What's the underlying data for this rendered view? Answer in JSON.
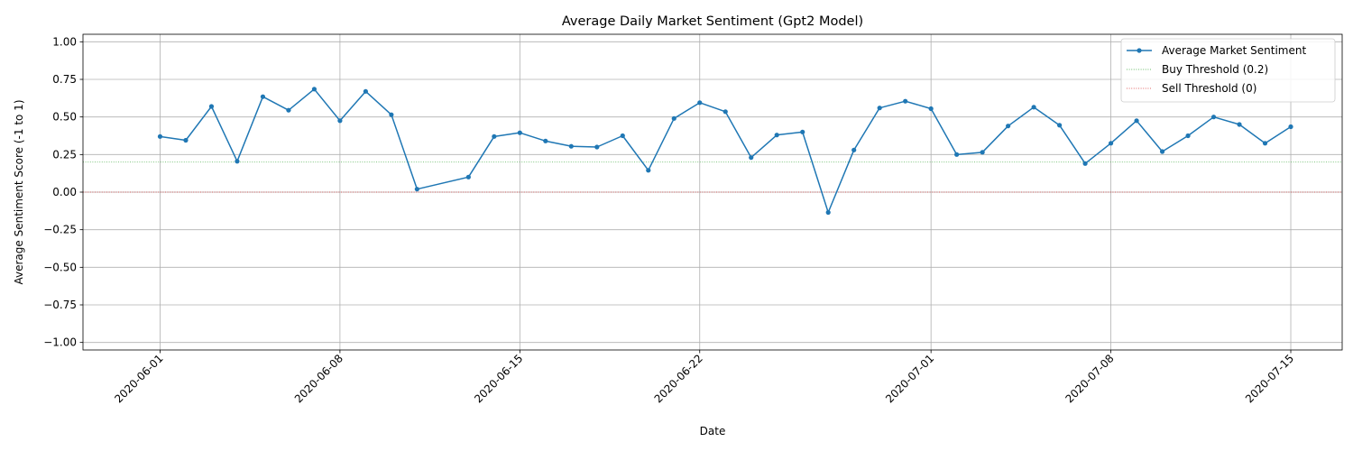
{
  "chart_data": {
    "type": "line",
    "title": "Average Daily Market Sentiment (Gpt2 Model)",
    "xlabel": "Date",
    "ylabel": "Average Sentiment Score (-1 to 1)",
    "ylim": [
      -1.05,
      1.05
    ],
    "xlim": [
      "2020-05-29",
      "2020-07-17"
    ],
    "yticks": [
      -1.0,
      -0.75,
      -0.5,
      -0.25,
      0.0,
      0.25,
      0.5,
      0.75,
      1.0
    ],
    "ytick_labels": [
      "−1.00",
      "−0.75",
      "−0.50",
      "−0.25",
      "0.00",
      "0.25",
      "0.50",
      "0.75",
      "1.00"
    ],
    "xticks": [
      "2020-06-01",
      "2020-06-08",
      "2020-06-15",
      "2020-06-22",
      "2020-07-01",
      "2020-07-08",
      "2020-07-15"
    ],
    "grid": true,
    "legend_position": "top-right",
    "series": [
      {
        "name": "Average Market Sentiment",
        "color": "#1f77b4",
        "style": "line-with-markers",
        "points": [
          {
            "x": "2020-06-01",
            "y": 0.37
          },
          {
            "x": "2020-06-02",
            "y": 0.345
          },
          {
            "x": "2020-06-03",
            "y": 0.57
          },
          {
            "x": "2020-06-04",
            "y": 0.205
          },
          {
            "x": "2020-06-05",
            "y": 0.635
          },
          {
            "x": "2020-06-06",
            "y": 0.545
          },
          {
            "x": "2020-06-07",
            "y": 0.685
          },
          {
            "x": "2020-06-08",
            "y": 0.475
          },
          {
            "x": "2020-06-09",
            "y": 0.67
          },
          {
            "x": "2020-06-10",
            "y": 0.515
          },
          {
            "x": "2020-06-11",
            "y": 0.02
          },
          {
            "x": "2020-06-13",
            "y": 0.1
          },
          {
            "x": "2020-06-14",
            "y": 0.37
          },
          {
            "x": "2020-06-15",
            "y": 0.395
          },
          {
            "x": "2020-06-16",
            "y": 0.34
          },
          {
            "x": "2020-06-17",
            "y": 0.305
          },
          {
            "x": "2020-06-18",
            "y": 0.3
          },
          {
            "x": "2020-06-19",
            "y": 0.375
          },
          {
            "x": "2020-06-20",
            "y": 0.145
          },
          {
            "x": "2020-06-21",
            "y": 0.49
          },
          {
            "x": "2020-06-22",
            "y": 0.595
          },
          {
            "x": "2020-06-23",
            "y": 0.535
          },
          {
            "x": "2020-06-24",
            "y": 0.23
          },
          {
            "x": "2020-06-25",
            "y": 0.38
          },
          {
            "x": "2020-06-26",
            "y": 0.4
          },
          {
            "x": "2020-06-27",
            "y": -0.135
          },
          {
            "x": "2020-06-28",
            "y": 0.28
          },
          {
            "x": "2020-06-29",
            "y": 0.56
          },
          {
            "x": "2020-06-30",
            "y": 0.605
          },
          {
            "x": "2020-07-01",
            "y": 0.555
          },
          {
            "x": "2020-07-02",
            "y": 0.25
          },
          {
            "x": "2020-07-03",
            "y": 0.265
          },
          {
            "x": "2020-07-04",
            "y": 0.44
          },
          {
            "x": "2020-07-05",
            "y": 0.565
          },
          {
            "x": "2020-07-06",
            "y": 0.445
          },
          {
            "x": "2020-07-07",
            "y": 0.19
          },
          {
            "x": "2020-07-08",
            "y": 0.325
          },
          {
            "x": "2020-07-09",
            "y": 0.475
          },
          {
            "x": "2020-07-10",
            "y": 0.27
          },
          {
            "x": "2020-07-11",
            "y": 0.375
          },
          {
            "x": "2020-07-12",
            "y": 0.5
          },
          {
            "x": "2020-07-13",
            "y": 0.45
          },
          {
            "x": "2020-07-14",
            "y": 0.325
          },
          {
            "x": "2020-07-15",
            "y": 0.435
          }
        ]
      }
    ],
    "thresholds": [
      {
        "name": "Buy Threshold (0.2)",
        "y": 0.2,
        "color": "#2ca02c",
        "style": "dotted"
      },
      {
        "name": "Sell Threshold (0)",
        "y": 0.0,
        "color": "#d62728",
        "style": "dotted"
      }
    ]
  }
}
